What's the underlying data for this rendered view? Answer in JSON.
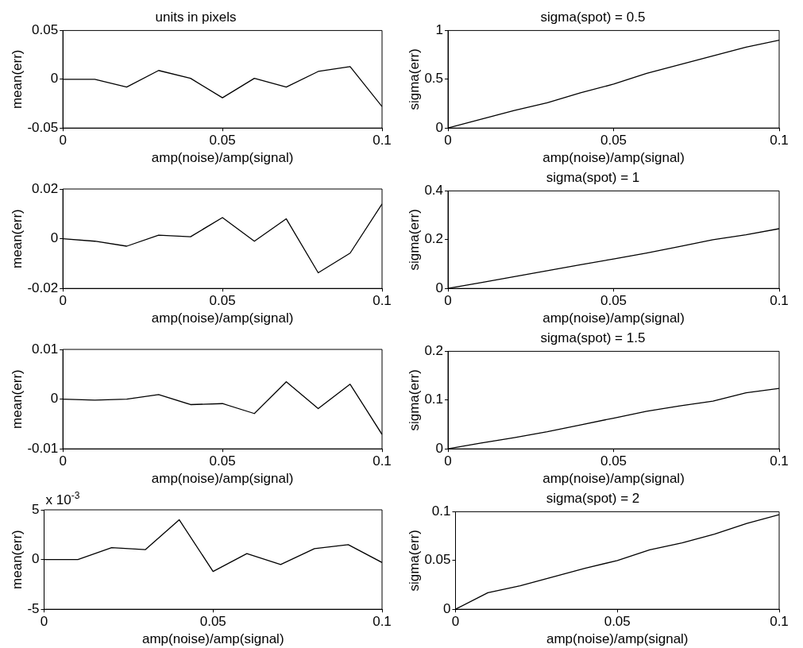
{
  "chart_data": [
    {
      "type": "line",
      "title": "units in pixels",
      "xlabel": "amp(noise)/amp(signal)",
      "ylabel": "mean(err)",
      "x": [
        0,
        0.01,
        0.02,
        0.03,
        0.04,
        0.05,
        0.06,
        0.07,
        0.08,
        0.09,
        0.1
      ],
      "series": [
        {
          "color": "#000000",
          "values": [
            0,
            0,
            -0.008,
            0.009,
            0.001,
            -0.019,
            0.001,
            -0.008,
            0.008,
            0.013,
            -0.028
          ]
        }
      ],
      "xlim": [
        0,
        0.1
      ],
      "xticks": [
        0,
        0.05,
        0.1
      ],
      "ylim": [
        -0.05,
        0.05
      ],
      "yticks": [
        -0.05,
        0,
        0.05
      ]
    },
    {
      "type": "line",
      "title": "sigma(spot) = 0.5",
      "xlabel": "amp(noise)/amp(signal)",
      "ylabel": "sigma(err)",
      "x": [
        0,
        0.01,
        0.02,
        0.03,
        0.04,
        0.05,
        0.06,
        0.07,
        0.08,
        0.09,
        0.1
      ],
      "series": [
        {
          "color": "#000000",
          "values": [
            0,
            0.09,
            0.18,
            0.26,
            0.36,
            0.45,
            0.56,
            0.65,
            0.74,
            0.83,
            0.9
          ]
        }
      ],
      "xlim": [
        0,
        0.1
      ],
      "xticks": [
        0,
        0.05,
        0.1
      ],
      "ylim": [
        0,
        1
      ],
      "yticks": [
        0,
        0.5,
        1
      ]
    },
    {
      "type": "line",
      "xlabel": "amp(noise)/amp(signal)",
      "ylabel": "mean(err)",
      "x": [
        0,
        0.01,
        0.02,
        0.03,
        0.04,
        0.05,
        0.06,
        0.07,
        0.08,
        0.09,
        0.1
      ],
      "series": [
        {
          "color": "#000000",
          "values": [
            0,
            -0.001,
            -0.003,
            0.0014,
            0.0008,
            0.0085,
            -0.001,
            0.008,
            -0.0137,
            -0.0058,
            0.014
          ]
        }
      ],
      "xlim": [
        0,
        0.1
      ],
      "xticks": [
        0,
        0.05,
        0.1
      ],
      "ylim": [
        -0.02,
        0.02
      ],
      "yticks": [
        -0.02,
        0,
        0.02
      ]
    },
    {
      "type": "line",
      "title": "sigma(spot) = 1",
      "xlabel": "amp(noise)/amp(signal)",
      "ylabel": "sigma(err)",
      "x": [
        0,
        0.01,
        0.02,
        0.03,
        0.04,
        0.05,
        0.06,
        0.07,
        0.08,
        0.09,
        0.1
      ],
      "series": [
        {
          "color": "#000000",
          "values": [
            0,
            0.024,
            0.048,
            0.073,
            0.097,
            0.121,
            0.145,
            0.172,
            0.2,
            0.22,
            0.245
          ]
        }
      ],
      "xlim": [
        0,
        0.1
      ],
      "xticks": [
        0,
        0.05,
        0.1
      ],
      "ylim": [
        0,
        0.4
      ],
      "yticks": [
        0,
        0.2,
        0.4
      ]
    },
    {
      "type": "line",
      "xlabel": "amp(noise)/amp(signal)",
      "ylabel": "mean(err)",
      "x": [
        0,
        0.01,
        0.02,
        0.03,
        0.04,
        0.05,
        0.06,
        0.07,
        0.08,
        0.09,
        0.1
      ],
      "series": [
        {
          "color": "#000000",
          "values": [
            0,
            -0.0002,
            0,
            0.0009,
            -0.0011,
            -0.0009,
            -0.0029,
            0.0035,
            -0.0019,
            0.003,
            -0.0071
          ]
        }
      ],
      "xlim": [
        0,
        0.1
      ],
      "xticks": [
        0,
        0.05,
        0.1
      ],
      "ylim": [
        -0.01,
        0.01
      ],
      "yticks": [
        -0.01,
        0,
        0.01
      ]
    },
    {
      "type": "line",
      "title": "sigma(spot) = 1.5",
      "xlabel": "amp(noise)/amp(signal)",
      "ylabel": "sigma(err)",
      "x": [
        0,
        0.01,
        0.02,
        0.03,
        0.04,
        0.05,
        0.06,
        0.07,
        0.08,
        0.09,
        0.1
      ],
      "series": [
        {
          "color": "#000000",
          "values": [
            0,
            0.012,
            0.023,
            0.035,
            0.049,
            0.063,
            0.077,
            0.088,
            0.098,
            0.115,
            0.124
          ]
        }
      ],
      "xlim": [
        0,
        0.1
      ],
      "xticks": [
        0,
        0.05,
        0.1
      ],
      "ylim": [
        0,
        0.2
      ],
      "yticks": [
        0,
        0.1,
        0.2
      ]
    },
    {
      "type": "line",
      "xlabel": "amp(noise)/amp(signal)",
      "ylabel": "mean(err)",
      "annotations": [
        "x 10$^{-3}$"
      ],
      "x": [
        0,
        0.01,
        0.02,
        0.03,
        0.04,
        0.05,
        0.06,
        0.07,
        0.08,
        0.09,
        0.1
      ],
      "series": [
        {
          "color": "#000000",
          "values": [
            0,
            0,
            1.2,
            1.0,
            4.0,
            -1.2,
            0.6,
            -0.5,
            1.1,
            1.5,
            -0.3
          ]
        }
      ],
      "xlim": [
        0,
        0.1
      ],
      "xticks": [
        0,
        0.05,
        0.1
      ],
      "ylim": [
        -5,
        5
      ],
      "yticks": [
        -5,
        0,
        5
      ]
    },
    {
      "type": "line",
      "title": "sigma(spot) = 2",
      "xlabel": "amp(noise)/amp(signal)",
      "ylabel": "sigma(err)",
      "x": [
        0,
        0.01,
        0.02,
        0.03,
        0.04,
        0.05,
        0.06,
        0.07,
        0.08,
        0.09,
        0.1
      ],
      "series": [
        {
          "color": "#000000",
          "values": [
            0,
            0.017,
            0.024,
            0.033,
            0.042,
            0.05,
            0.061,
            0.068,
            0.077,
            0.088,
            0.097
          ]
        }
      ],
      "xlim": [
        0,
        0.1
      ],
      "xticks": [
        0,
        0.05,
        0.1
      ],
      "ylim": [
        0,
        0.1
      ],
      "yticks": [
        0,
        0.05,
        0.1
      ]
    }
  ]
}
